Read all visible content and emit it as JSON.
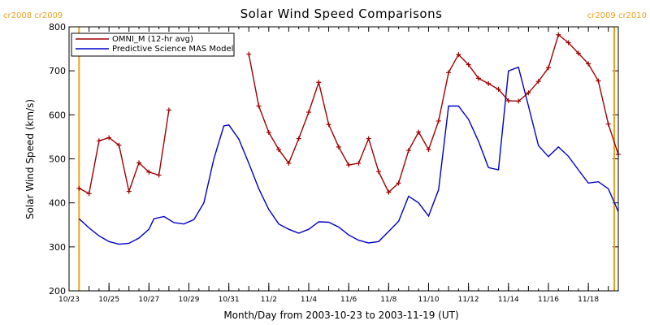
{
  "colors": {
    "omni": "#a00000",
    "mas": "#0000c8",
    "carrington": "#f0a020",
    "axis": "#000000"
  },
  "chart_data": {
    "type": "line",
    "title": "Solar Wind Speed Comparisons",
    "xlabel": "Month/Day from 2003-10-23 to 2003-11-19 (UT)",
    "ylabel": "Solar Wind Speed (km/s)",
    "ylim": [
      200,
      800
    ],
    "xlim": [
      "2003-10-23",
      "2003-11-19T12:00"
    ],
    "yticks": [
      200,
      300,
      400,
      500,
      600,
      700,
      800
    ],
    "xticks": [
      {
        "date": "2003-10-23",
        "label": "10/23"
      },
      {
        "date": "2003-10-25",
        "label": "10/25"
      },
      {
        "date": "2003-10-27",
        "label": "10/27"
      },
      {
        "date": "2003-10-29",
        "label": "10/29"
      },
      {
        "date": "2003-10-31",
        "label": "10/31"
      },
      {
        "date": "2003-11-02",
        "label": "11/2"
      },
      {
        "date": "2003-11-04",
        "label": "11/4"
      },
      {
        "date": "2003-11-06",
        "label": "11/6"
      },
      {
        "date": "2003-11-08",
        "label": "11/8"
      },
      {
        "date": "2003-11-10",
        "label": "11/10"
      },
      {
        "date": "2003-11-12",
        "label": "11/12"
      },
      {
        "date": "2003-11-14",
        "label": "11/14"
      },
      {
        "date": "2003-11-16",
        "label": "11/16"
      },
      {
        "date": "2003-11-18",
        "label": "11/18"
      }
    ],
    "carrington": [
      {
        "date": "2003-10-23T12:00",
        "label": "cr2008 cr2009",
        "side": "left"
      },
      {
        "date": "2003-11-19T12:00",
        "label": "cr2009 cr2010",
        "side": "right"
      }
    ],
    "legend_position": "top-left",
    "series": [
      {
        "name": "OMNI_M (12-hr avg)",
        "key": "omni",
        "marker": "plus",
        "segments": [
          [
            [
              "2003-10-23T12:00",
              433
            ],
            [
              "2003-10-24T00:00",
              421
            ],
            [
              "2003-10-24T12:00",
              541
            ],
            [
              "2003-10-25T00:00",
              548
            ],
            [
              "2003-10-25T12:00",
              531
            ],
            [
              "2003-10-26T00:00",
              426
            ],
            [
              "2003-10-26T12:00",
              491
            ],
            [
              "2003-10-27T00:00",
              470
            ],
            [
              "2003-10-27T12:00",
              463
            ],
            [
              "2003-10-28T00:00",
              611
            ]
          ],
          [
            [
              "2003-11-01T00:00",
              738
            ],
            [
              "2003-11-01T12:00",
              620
            ],
            [
              "2003-11-02T00:00",
              560
            ],
            [
              "2003-11-02T12:00",
              521
            ],
            [
              "2003-11-03T00:00",
              490
            ],
            [
              "2003-11-03T12:00",
              546
            ],
            [
              "2003-11-04T00:00",
              606
            ],
            [
              "2003-11-04T12:00",
              674
            ],
            [
              "2003-11-05T00:00",
              578
            ],
            [
              "2003-11-05T12:00",
              527
            ],
            [
              "2003-11-06T00:00",
              486
            ],
            [
              "2003-11-06T12:00",
              490
            ],
            [
              "2003-11-07T00:00",
              546
            ],
            [
              "2003-11-07T12:00",
              471
            ],
            [
              "2003-11-08T00:00",
              424
            ],
            [
              "2003-11-08T12:00",
              445
            ],
            [
              "2003-11-09T00:00",
              519
            ],
            [
              "2003-11-09T12:00",
              561
            ],
            [
              "2003-11-10T00:00",
              521
            ],
            [
              "2003-11-10T12:00",
              586
            ],
            [
              "2003-11-11T00:00",
              696
            ],
            [
              "2003-11-11T12:00",
              737
            ],
            [
              "2003-11-12T00:00",
              714
            ],
            [
              "2003-11-12T12:00",
              683
            ],
            [
              "2003-11-13T00:00",
              671
            ],
            [
              "2003-11-13T12:00",
              658
            ],
            [
              "2003-11-14T00:00",
              632
            ],
            [
              "2003-11-14T12:00",
              631
            ],
            [
              "2003-11-15T00:00",
              650
            ],
            [
              "2003-11-15T12:00",
              676
            ],
            [
              "2003-11-16T00:00",
              707
            ],
            [
              "2003-11-16T12:00",
              782
            ],
            [
              "2003-11-17T00:00",
              764
            ],
            [
              "2003-11-17T12:00",
              740
            ],
            [
              "2003-11-18T00:00",
              716
            ],
            [
              "2003-11-18T12:00",
              677
            ],
            [
              "2003-11-19T00:00",
              579
            ],
            [
              "2003-11-19T12:00",
              510
            ]
          ]
        ]
      },
      {
        "name": "Predictive Science MAS Model",
        "key": "mas",
        "marker": "none",
        "segments": [
          [
            [
              "2003-10-23T12:00",
              364
            ],
            [
              "2003-10-24T00:00",
              343
            ],
            [
              "2003-10-24T12:00",
              325
            ],
            [
              "2003-10-25T00:00",
              312
            ],
            [
              "2003-10-25T12:00",
              306
            ],
            [
              "2003-10-26T00:00",
              308
            ],
            [
              "2003-10-26T12:00",
              320
            ],
            [
              "2003-10-27T00:00",
              340
            ],
            [
              "2003-10-27T06:00",
              364
            ],
            [
              "2003-10-27T18:00",
              369
            ],
            [
              "2003-10-28T06:00",
              355
            ],
            [
              "2003-10-28T18:00",
              352
            ],
            [
              "2003-10-29T06:00",
              362
            ],
            [
              "2003-10-29T18:00",
              400
            ],
            [
              "2003-10-30T06:00",
              500
            ],
            [
              "2003-10-30T18:00",
              575
            ],
            [
              "2003-10-31T00:00",
              577
            ],
            [
              "2003-10-31T12:00",
              545
            ],
            [
              "2003-11-01T00:00",
              490
            ],
            [
              "2003-11-01T12:00",
              432
            ],
            [
              "2003-11-02T00:00",
              385
            ],
            [
              "2003-11-02T12:00",
              352
            ],
            [
              "2003-11-03T00:00",
              340
            ],
            [
              "2003-11-03T12:00",
              331
            ],
            [
              "2003-11-04T00:00",
              340
            ],
            [
              "2003-11-04T12:00",
              357
            ],
            [
              "2003-11-05T00:00",
              356
            ],
            [
              "2003-11-05T12:00",
              345
            ],
            [
              "2003-11-06T00:00",
              327
            ],
            [
              "2003-11-06T12:00",
              315
            ],
            [
              "2003-11-07T00:00",
              309
            ],
            [
              "2003-11-07T12:00",
              312
            ],
            [
              "2003-11-08T00:00",
              335
            ],
            [
              "2003-11-08T12:00",
              358
            ],
            [
              "2003-11-09T00:00",
              415
            ],
            [
              "2003-11-09T12:00",
              400
            ],
            [
              "2003-11-10T00:00",
              370
            ],
            [
              "2003-11-10T12:00",
              430
            ],
            [
              "2003-11-11T00:00",
              620
            ],
            [
              "2003-11-11T12:00",
              620
            ],
            [
              "2003-11-12T00:00",
              590
            ],
            [
              "2003-11-12T12:00",
              540
            ],
            [
              "2003-11-13T00:00",
              480
            ],
            [
              "2003-11-13T12:00",
              475
            ],
            [
              "2003-11-14T00:00",
              700
            ],
            [
              "2003-11-14T12:00",
              708
            ],
            [
              "2003-11-15T00:00",
              620
            ],
            [
              "2003-11-15T12:00",
              530
            ],
            [
              "2003-11-16T00:00",
              505
            ],
            [
              "2003-11-16T12:00",
              527
            ],
            [
              "2003-11-17T00:00",
              506
            ],
            [
              "2003-11-17T12:00",
              475
            ],
            [
              "2003-11-18T00:00",
              445
            ],
            [
              "2003-11-18T12:00",
              448
            ],
            [
              "2003-11-19T00:00",
              432
            ],
            [
              "2003-11-19T12:00",
              380
            ]
          ]
        ]
      }
    ]
  }
}
